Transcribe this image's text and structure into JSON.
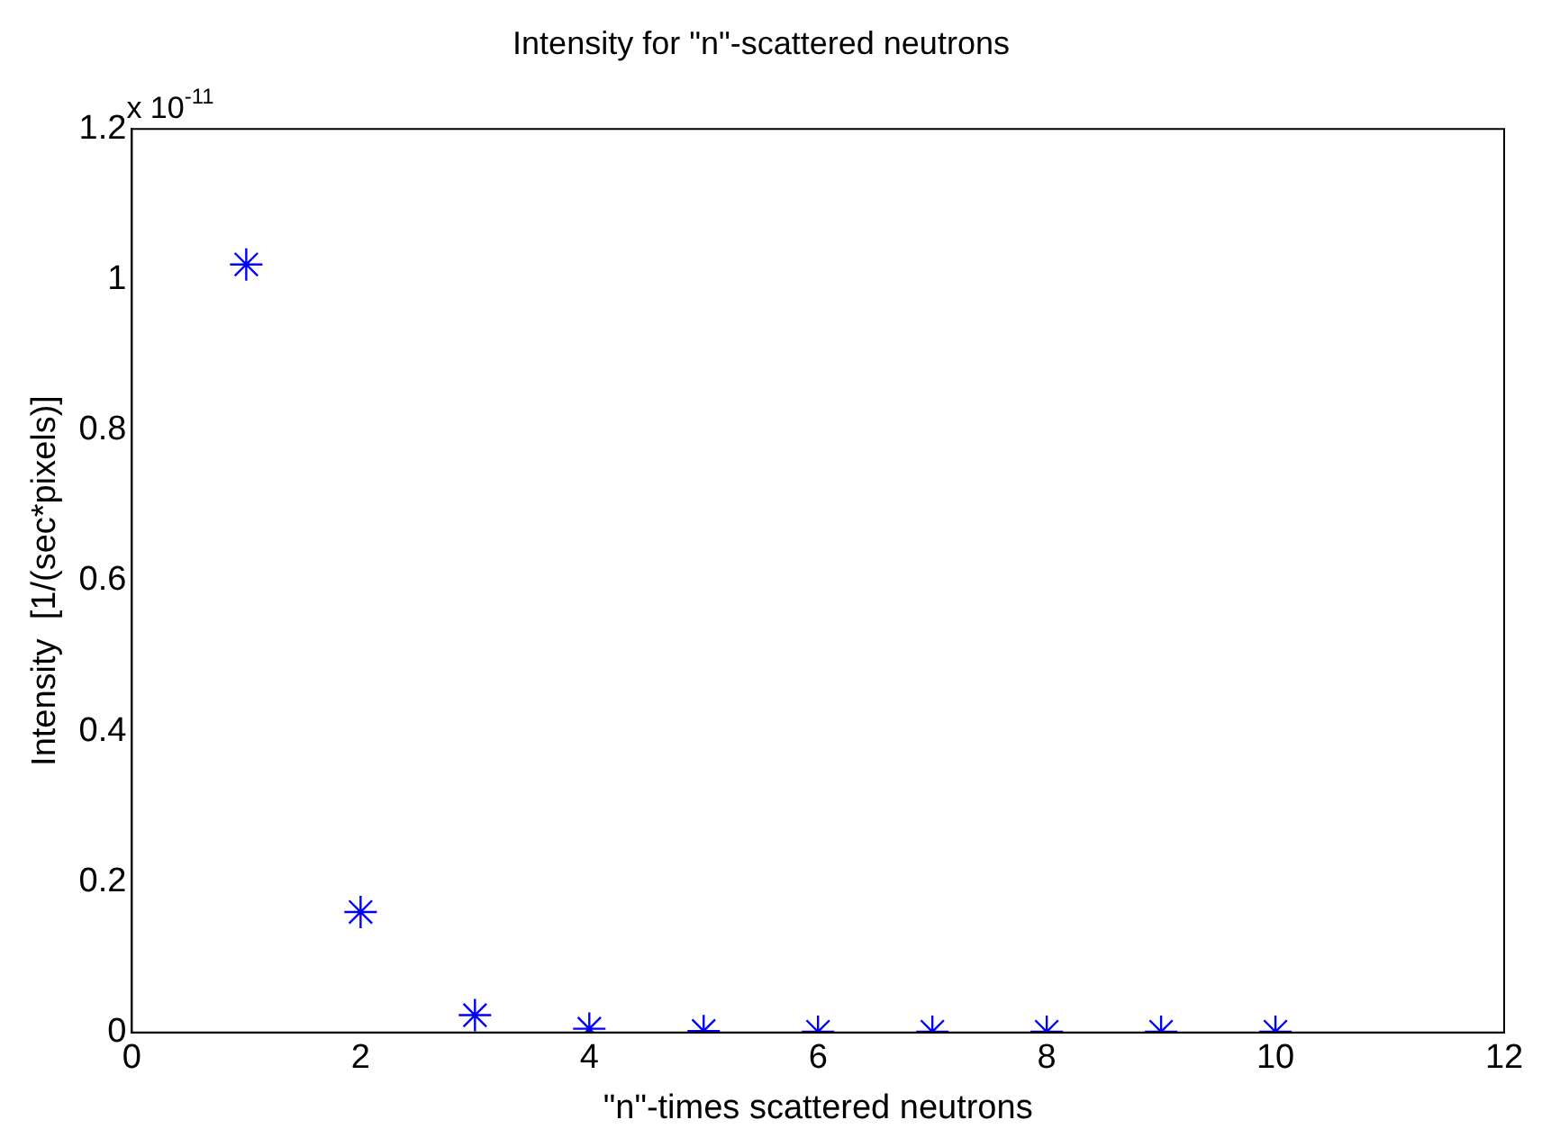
{
  "chart_data": {
    "type": "scatter",
    "title": "Intensity for \"n\"-scattered neutrons",
    "xlabel": "\"n\"-times scattered neutrons",
    "ylabel": "Intensity  [1/(sec*pixels)]",
    "annotations": [
      "x 10$^{-11}$"
    ],
    "x": [
      1,
      2,
      3,
      4,
      5,
      6,
      7,
      8,
      9,
      10
    ],
    "series": [
      {
        "color": "#0000ff",
        "values": [
          1.02,
          0.16,
          0.023,
          0.005,
          0.002,
          0.001,
          0.001,
          0.001,
          0.001,
          0.001
        ]
      }
    ],
    "xlim": [
      0,
      12
    ],
    "xticks": [
      0,
      2,
      4,
      6,
      8,
      10,
      12
    ],
    "ylim": [
      0,
      1.2
    ],
    "yticks": [
      0,
      0.2,
      0.4,
      0.6,
      0.8,
      1,
      1.2
    ],
    "marker": "cross",
    "grid": false,
    "legend": false
  }
}
